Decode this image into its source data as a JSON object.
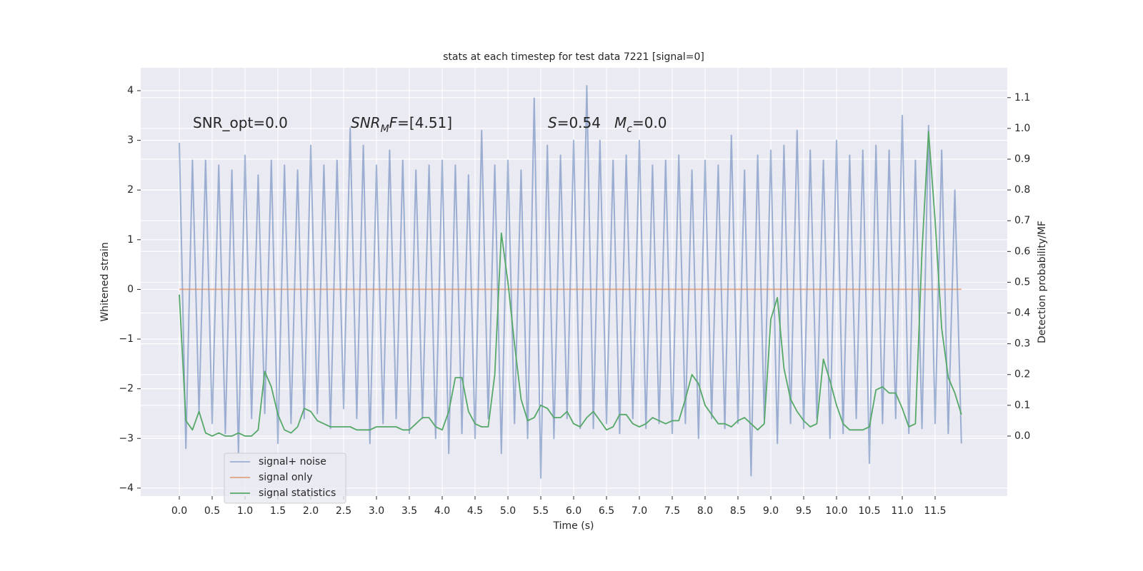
{
  "chart_data": {
    "type": "line",
    "title": "stats at each timestep for test data 7221 [signal=0]",
    "xlabel": "Time (s)",
    "ylabel": "Whitened strain",
    "y2label": "Detection probability/MF",
    "background": "#eaeaf2",
    "grid": true,
    "legend": "lower left",
    "annotations": [
      {
        "segments": [
          {
            "text": "SNR_opt=0.0"
          }
        ]
      },
      {
        "segments": [
          {
            "text": "SNR",
            "style": "italic"
          },
          {
            "text": "M",
            "style": "italic-sub"
          },
          {
            "text": "F",
            "style": "italic"
          },
          {
            "text": "=[4.51]"
          }
        ]
      },
      {
        "segments": [
          {
            "text": "S",
            "style": "italic"
          },
          {
            "text": "=0.54"
          }
        ]
      },
      {
        "segments": [
          {
            "text": "M",
            "style": "italic"
          },
          {
            "text": "c",
            "style": "italic-sub"
          },
          {
            "text": "=0.0"
          }
        ]
      }
    ],
    "x": [
      0,
      0.1,
      0.2,
      0.3,
      0.4,
      0.5,
      0.6,
      0.7,
      0.8,
      0.9,
      1,
      1.1,
      1.2,
      1.3,
      1.4,
      1.5,
      1.6,
      1.7,
      1.8,
      1.9,
      2,
      2.1,
      2.2,
      2.3,
      2.4,
      2.5,
      2.6,
      2.7,
      2.8,
      2.9,
      3,
      3.1,
      3.2,
      3.3,
      3.4,
      3.5,
      3.6,
      3.7,
      3.8,
      3.9,
      4,
      4.1,
      4.2,
      4.3,
      4.4,
      4.5,
      4.6,
      4.7,
      4.8,
      4.9,
      5,
      5.1,
      5.2,
      5.3,
      5.4,
      5.5,
      5.6,
      5.7,
      5.8,
      5.9,
      6,
      6.1,
      6.2,
      6.3,
      6.4,
      6.5,
      6.6,
      6.7,
      6.8,
      6.9,
      7,
      7.1,
      7.2,
      7.3,
      7.4,
      7.5,
      7.6,
      7.7,
      7.8,
      7.9,
      8,
      8.1,
      8.2,
      8.3,
      8.4,
      8.5,
      8.6,
      8.7,
      8.8,
      8.9,
      9,
      9.1,
      9.2,
      9.3,
      9.4,
      9.5,
      9.6,
      9.7,
      9.8,
      9.9,
      10,
      10.1,
      10.2,
      10.3,
      10.4,
      10.5,
      10.6,
      10.7,
      10.8,
      10.9,
      11,
      11.1,
      11.2,
      11.3,
      11.4,
      11.5,
      11.6,
      11.7,
      11.8,
      11.9
    ],
    "series": [
      {
        "name": "signal+ noise",
        "color": "#4c72b0",
        "opacity": 0.5,
        "axis": "y",
        "values": [
          2.95,
          -3.2,
          2.6,
          -2.5,
          2.6,
          -2.7,
          2.5,
          -2.9,
          2.4,
          -3.3,
          2.7,
          -2.6,
          2.3,
          -2.5,
          2.6,
          -3.1,
          2.5,
          -2.7,
          2.4,
          -2.6,
          2.9,
          -2.5,
          2.5,
          -2.8,
          2.6,
          -2.4,
          3.25,
          -2.6,
          2.9,
          -3.1,
          2.5,
          -2.7,
          2.8,
          -2.6,
          2.6,
          -2.9,
          2.4,
          -2.6,
          2.5,
          -3.0,
          2.6,
          -3.3,
          2.5,
          -2.9,
          2.3,
          -3.0,
          3.2,
          -2.6,
          2.5,
          -3.3,
          2.6,
          -2.7,
          2.4,
          -3.0,
          3.85,
          -3.8,
          2.9,
          -3.0,
          2.7,
          -2.6,
          3.0,
          -2.8,
          4.1,
          -2.8,
          3.0,
          -2.7,
          2.6,
          -2.9,
          2.7,
          -2.6,
          3.0,
          -2.8,
          2.5,
          -2.7,
          2.6,
          -2.9,
          2.7,
          -2.7,
          2.4,
          -3.0,
          2.6,
          -2.6,
          2.5,
          -2.8,
          3.1,
          -2.7,
          2.4,
          -3.75,
          2.7,
          -2.6,
          2.8,
          -3.1,
          2.9,
          -2.7,
          3.2,
          -2.8,
          2.8,
          -2.6,
          2.6,
          -3.0,
          3.0,
          -2.9,
          2.7,
          -2.6,
          2.8,
          -3.5,
          2.9,
          -2.7,
          2.8,
          -2.6,
          3.5,
          -2.9,
          2.6,
          -2.8,
          3.3,
          -2.7,
          2.8,
          -2.9,
          2.0,
          -3.1
        ]
      },
      {
        "name": "signal only",
        "color": "#dd8452",
        "opacity": 0.7,
        "axis": "y",
        "values": [
          0,
          0,
          0,
          0,
          0,
          0,
          0,
          0,
          0,
          0,
          0,
          0,
          0,
          0,
          0,
          0,
          0,
          0,
          0,
          0,
          0,
          0,
          0,
          0,
          0,
          0,
          0,
          0,
          0,
          0,
          0,
          0,
          0,
          0,
          0,
          0,
          0,
          0,
          0,
          0,
          0,
          0,
          0,
          0,
          0,
          0,
          0,
          0,
          0,
          0,
          0,
          0,
          0,
          0,
          0,
          0,
          0,
          0,
          0,
          0,
          0,
          0,
          0,
          0,
          0,
          0,
          0,
          0,
          0,
          0,
          0,
          0,
          0,
          0,
          0,
          0,
          0,
          0,
          0,
          0,
          0,
          0,
          0,
          0,
          0,
          0,
          0,
          0,
          0,
          0,
          0,
          0,
          0,
          0,
          0,
          0,
          0,
          0,
          0,
          0,
          0,
          0,
          0,
          0,
          0,
          0,
          0,
          0,
          0,
          0,
          0,
          0,
          0,
          0,
          0,
          0,
          0,
          0,
          0,
          0
        ]
      },
      {
        "name": "signal statistics",
        "color": "#55a868",
        "opacity": 1,
        "axis": "y2",
        "values": [
          0.46,
          0.05,
          0.02,
          0.08,
          0.01,
          0.0,
          0.01,
          0.0,
          0.0,
          0.01,
          0.0,
          0.0,
          0.02,
          0.21,
          0.16,
          0.07,
          0.02,
          0.01,
          0.03,
          0.09,
          0.08,
          0.05,
          0.04,
          0.03,
          0.03,
          0.03,
          0.03,
          0.02,
          0.02,
          0.02,
          0.03,
          0.03,
          0.03,
          0.03,
          0.02,
          0.02,
          0.04,
          0.06,
          0.06,
          0.03,
          0.02,
          0.08,
          0.19,
          0.19,
          0.08,
          0.04,
          0.03,
          0.03,
          0.2,
          0.66,
          0.5,
          0.3,
          0.12,
          0.05,
          0.06,
          0.1,
          0.09,
          0.06,
          0.06,
          0.08,
          0.04,
          0.03,
          0.06,
          0.08,
          0.05,
          0.02,
          0.03,
          0.07,
          0.07,
          0.04,
          0.03,
          0.04,
          0.06,
          0.05,
          0.04,
          0.05,
          0.05,
          0.12,
          0.2,
          0.17,
          0.1,
          0.07,
          0.04,
          0.04,
          0.03,
          0.05,
          0.06,
          0.04,
          0.02,
          0.04,
          0.38,
          0.45,
          0.22,
          0.12,
          0.08,
          0.05,
          0.03,
          0.04,
          0.25,
          0.18,
          0.1,
          0.04,
          0.02,
          0.02,
          0.02,
          0.03,
          0.15,
          0.16,
          0.14,
          0.14,
          0.09,
          0.03,
          0.04,
          0.6,
          0.99,
          0.7,
          0.35,
          0.19,
          0.14,
          0.07
        ]
      }
    ],
    "xlim": [
      -0.587,
      12.598
    ],
    "ylim": [
      -4.16,
      4.46
    ],
    "y2lim": [
      -0.195,
      1.197
    ],
    "xticks": [
      {
        "value": 0,
        "label": "0.0"
      },
      0.5,
      {
        "value": 1,
        "label": "1.0"
      },
      1.5,
      {
        "value": 2,
        "label": "2.0"
      },
      2.5,
      {
        "value": 3,
        "label": "3.0"
      },
      3.5,
      {
        "value": 4,
        "label": "4.0"
      },
      4.5,
      {
        "value": 5,
        "label": "5.0"
      },
      5.5,
      {
        "value": 6,
        "label": "6.0"
      },
      6.5,
      {
        "value": 7,
        "label": "7.0"
      },
      7.5,
      {
        "value": 8,
        "label": "8.0"
      },
      8.5,
      {
        "value": 9,
        "label": "9.0"
      },
      9.5,
      {
        "value": 10,
        "label": "10.0"
      },
      10.5,
      {
        "value": 11,
        "label": "11.0"
      },
      11.5
    ],
    "yticks": [
      {
        "value": -4,
        "label": "−4"
      },
      {
        "value": -3,
        "label": "−3"
      },
      {
        "value": -2,
        "label": "−2"
      },
      {
        "value": -1,
        "label": "−1"
      },
      0,
      1,
      2,
      3,
      4
    ],
    "y2ticks": [
      {
        "value": 0,
        "label": "0.0"
      },
      0.1,
      0.2,
      0.3,
      0.4,
      0.5,
      0.6,
      0.7,
      0.8,
      0.9,
      {
        "value": 1,
        "label": "1.0"
      },
      1.1
    ]
  }
}
